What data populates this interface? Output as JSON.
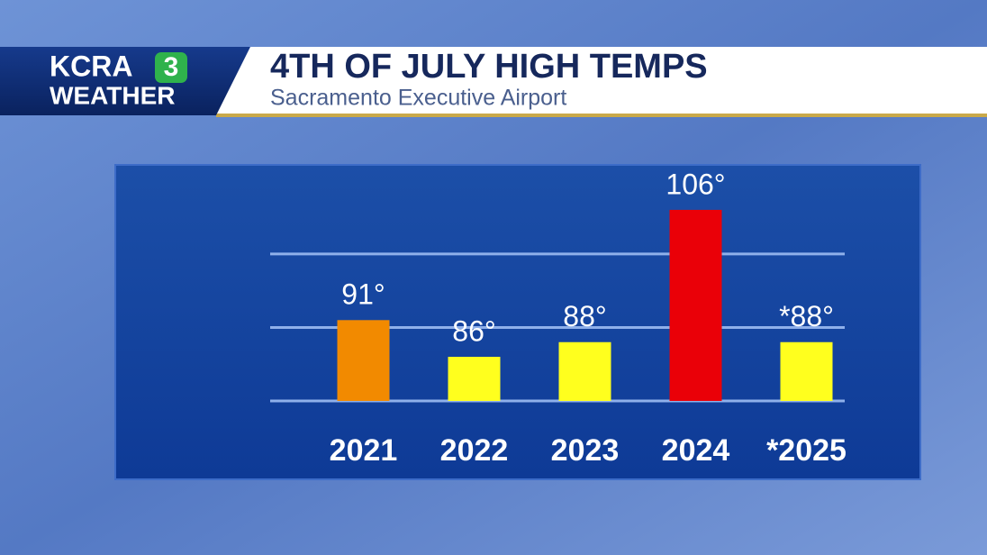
{
  "header": {
    "logo": "KCRA",
    "logo_number": "3",
    "logo_sub": "WEATHER"
  },
  "chart_data": {
    "type": "bar",
    "title": "4TH OF JULY HIGH TEMPS",
    "subtitle": "Sacramento Executive Airport",
    "categories": [
      "2021",
      "2022",
      "2023",
      "2024",
      "*2025"
    ],
    "values": [
      91,
      86,
      88,
      106,
      88
    ],
    "value_labels": [
      "91°",
      "86°",
      "88°",
      "106°",
      "*88°"
    ],
    "colors": [
      "#f28a00",
      "#ffff1e",
      "#ffff1e",
      "#ea0008",
      "#ffff1e"
    ],
    "ylim": [
      80,
      112
    ],
    "yticks": [
      80,
      90,
      100
    ],
    "grid": true
  }
}
